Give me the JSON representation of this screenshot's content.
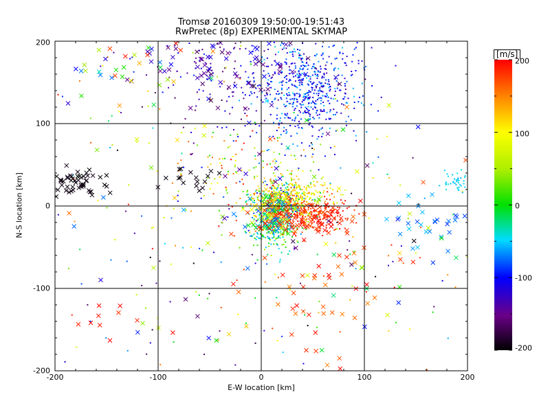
{
  "chart_data": {
    "type": "scatter",
    "title": "Tromsø 20160309 19:50:00-19:51:43",
    "subtitle": "RwPretec (8p) EXPERIMENTAL SKYMAP",
    "xlabel": "E-W location [km]",
    "ylabel": "N-S location [km]",
    "xlim": [
      -200,
      200
    ],
    "ylim": [
      -200,
      200
    ],
    "xticks": [
      "-200",
      "-100",
      "0",
      "100",
      "200"
    ],
    "yticks": [
      "-200",
      "-100",
      "0",
      "100",
      "200"
    ],
    "grid": true,
    "colorbar": {
      "unit": "[m/s]",
      "range": [
        -200,
        200
      ],
      "ticks": [
        "200",
        "100",
        "0",
        "-100",
        "-200"
      ],
      "colormap": "rainbow (black-purple-blue-cyan-green-yellow-red)",
      "placement": "right"
    },
    "markers": [
      "x",
      "dot"
    ],
    "clusters": [
      {
        "cx": 15,
        "cy": 5,
        "sx": 14,
        "sy": 12,
        "n": 420,
        "v": [
          -120,
          160
        ],
        "marker": "dot"
      },
      {
        "cx": 10,
        "cy": -25,
        "sx": 12,
        "sy": 12,
        "n": 260,
        "v": [
          -80,
          60
        ],
        "marker": "dot"
      },
      {
        "cx": 45,
        "cy": -10,
        "sx": 22,
        "sy": 10,
        "n": 280,
        "v": [
          170,
          200
        ],
        "marker": "dot"
      },
      {
        "cx": 40,
        "cy": 15,
        "sx": 18,
        "sy": 10,
        "n": 140,
        "v": [
          80,
          140
        ],
        "marker": "dot"
      },
      {
        "cx": 45,
        "cy": 140,
        "sx": 25,
        "sy": 30,
        "n": 550,
        "v": [
          -130,
          -50
        ],
        "marker": "dot"
      },
      {
        "cx": -30,
        "cy": 160,
        "sx": 45,
        "sy": 30,
        "n": 160,
        "v": [
          -170,
          -90
        ],
        "marker": "dot"
      },
      {
        "cx": -10,
        "cy": 40,
        "sx": 35,
        "sy": 25,
        "n": 130,
        "v": [
          0,
          200
        ],
        "marker": "dot"
      },
      {
        "cx": 0,
        "cy": 0,
        "sx": 120,
        "sy": 110,
        "n": 320,
        "v": [
          -200,
          200
        ],
        "marker": "dot"
      },
      {
        "cx": 190,
        "cy": 30,
        "sx": 6,
        "sy": 6,
        "n": 40,
        "v": [
          -60,
          -40
        ],
        "marker": "dot"
      },
      {
        "cx": 15,
        "cy": -10,
        "sx": 12,
        "sy": 12,
        "n": 110,
        "v": [
          -90,
          190
        ],
        "marker": "x"
      },
      {
        "cx": 50,
        "cy": -15,
        "sx": 22,
        "sy": 12,
        "n": 70,
        "v": [
          170,
          200
        ],
        "marker": "x"
      },
      {
        "cx": -178,
        "cy": 28,
        "sx": 14,
        "sy": 7,
        "n": 55,
        "v": [
          -200,
          -190
        ],
        "marker": "x"
      },
      {
        "cx": -40,
        "cy": 170,
        "sx": 50,
        "sy": 22,
        "n": 80,
        "v": [
          -170,
          -100
        ],
        "marker": "x"
      },
      {
        "cx": -130,
        "cy": 170,
        "sx": 30,
        "sy": 20,
        "n": 30,
        "v": [
          -80,
          200
        ],
        "marker": "x"
      },
      {
        "cx": 160,
        "cy": -20,
        "sx": 25,
        "sy": 15,
        "n": 30,
        "v": [
          -90,
          -50
        ],
        "marker": "x"
      },
      {
        "cx": 60,
        "cy": -100,
        "sx": 35,
        "sy": 45,
        "n": 45,
        "v": [
          150,
          200
        ],
        "marker": "x"
      },
      {
        "cx": -150,
        "cy": -140,
        "sx": 15,
        "sy": 15,
        "n": 10,
        "v": [
          180,
          200
        ],
        "marker": "x"
      },
      {
        "cx": -60,
        "cy": 30,
        "sx": 15,
        "sy": 10,
        "n": 16,
        "v": [
          -200,
          -190
        ],
        "marker": "x"
      },
      {
        "cx": 0,
        "cy": 0,
        "sx": 130,
        "sy": 110,
        "n": 120,
        "v": [
          -200,
          200
        ],
        "marker": "x"
      }
    ]
  }
}
